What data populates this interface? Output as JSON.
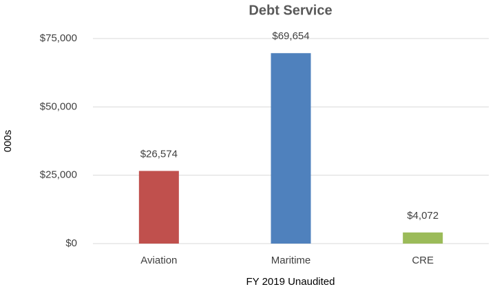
{
  "chart_data": {
    "type": "bar",
    "title": "Debt Service",
    "y_label": "000s",
    "x_label": "FY 2019 Unaudited",
    "categories": [
      "Aviation",
      "Maritime",
      "CRE"
    ],
    "values": [
      26574,
      69654,
      4072
    ],
    "value_labels": [
      "$26,574",
      "$69,654",
      "$4,072"
    ],
    "colors": [
      "#c0504d",
      "#4f81bd",
      "#9bbb59"
    ],
    "ylim": [
      0,
      75000
    ],
    "yticks": [
      {
        "value": 0,
        "label": "$0"
      },
      {
        "value": 25000,
        "label": "$25,000"
      },
      {
        "value": 50000,
        "label": "$50,000"
      },
      {
        "value": 75000,
        "label": "$75,000"
      }
    ],
    "grid": true
  }
}
